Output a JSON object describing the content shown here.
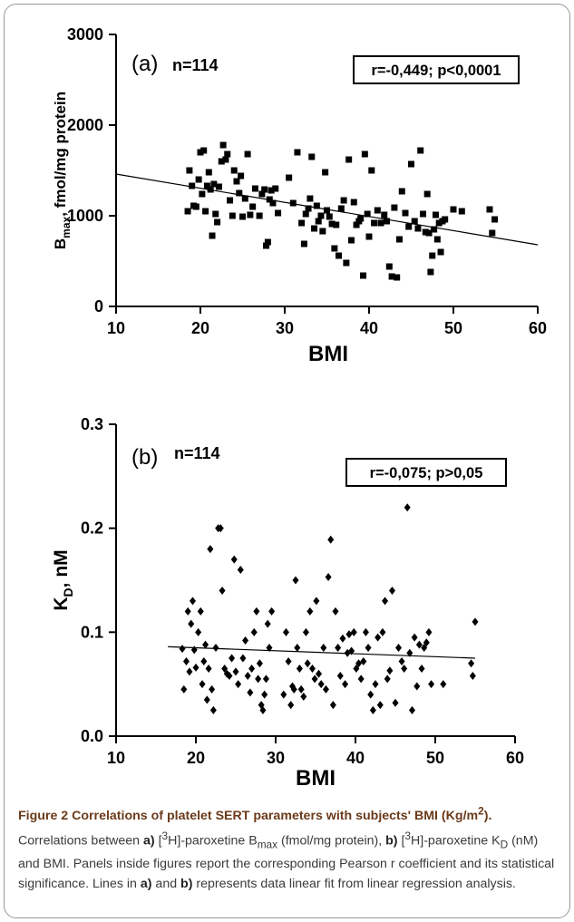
{
  "chart_data": [
    {
      "type": "scatter",
      "panel_label": "(a)",
      "n_label": "n=114",
      "stat_label": "r=-0,449; p<0,0001",
      "xlabel": "BMI",
      "ylabel_main": "B",
      "ylabel_sub": "max",
      "ylabel_rest": ", fmol/mg protein",
      "xlim": [
        10,
        60
      ],
      "ylim": [
        0,
        3000
      ],
      "xticks": [
        "10",
        "20",
        "30",
        "40",
        "50",
        "60"
      ],
      "yticks": [
        "0",
        "1000",
        "2000",
        "3000"
      ],
      "marker": "square",
      "fit_line": {
        "x": [
          10,
          60
        ],
        "y": [
          1460,
          680
        ]
      },
      "points": [
        [
          18.5,
          1050
        ],
        [
          18.7,
          1500
        ],
        [
          19,
          1330
        ],
        [
          19.2,
          1110
        ],
        [
          19.5,
          1100
        ],
        [
          19.8,
          1400
        ],
        [
          20,
          1700
        ],
        [
          20.2,
          1240
        ],
        [
          20.4,
          1720
        ],
        [
          20.6,
          1050
        ],
        [
          20.8,
          1330
        ],
        [
          21,
          1480
        ],
        [
          21.2,
          1290
        ],
        [
          21.4,
          780
        ],
        [
          21.6,
          1350
        ],
        [
          21.8,
          1020
        ],
        [
          22,
          930
        ],
        [
          22.2,
          1320
        ],
        [
          22.5,
          1600
        ],
        [
          22.7,
          1780
        ],
        [
          23,
          1620
        ],
        [
          23.2,
          1680
        ],
        [
          23.5,
          1170
        ],
        [
          23.8,
          1000
        ],
        [
          24,
          1500
        ],
        [
          24.3,
          1380
        ],
        [
          24.6,
          1250
        ],
        [
          24.8,
          1440
        ],
        [
          25,
          990
        ],
        [
          25.3,
          1190
        ],
        [
          25.6,
          1680
        ],
        [
          25.9,
          1010
        ],
        [
          26.2,
          1100
        ],
        [
          26.5,
          1300
        ],
        [
          27,
          1000
        ],
        [
          27.3,
          1240
        ],
        [
          27.6,
          1290
        ],
        [
          27.8,
          670
        ],
        [
          28,
          710
        ],
        [
          28.2,
          1180
        ],
        [
          28.4,
          1280
        ],
        [
          28.6,
          1140
        ],
        [
          28.9,
          1300
        ],
        [
          29.2,
          1030
        ],
        [
          30.5,
          1420
        ],
        [
          31,
          1140
        ],
        [
          31.5,
          1700
        ],
        [
          32,
          920
        ],
        [
          32.3,
          690
        ],
        [
          32.5,
          1020
        ],
        [
          32.8,
          1080
        ],
        [
          33,
          1190
        ],
        [
          33.2,
          1650
        ],
        [
          33.5,
          860
        ],
        [
          33.8,
          1110
        ],
        [
          34,
          940
        ],
        [
          34.3,
          1000
        ],
        [
          34.5,
          830
        ],
        [
          34.8,
          1480
        ],
        [
          35,
          1060
        ],
        [
          35.3,
          990
        ],
        [
          35.6,
          910
        ],
        [
          35.9,
          640
        ],
        [
          36.1,
          900
        ],
        [
          36.4,
          560
        ],
        [
          36.7,
          1080
        ],
        [
          37,
          1170
        ],
        [
          37.3,
          480
        ],
        [
          37.6,
          1620
        ],
        [
          37.9,
          730
        ],
        [
          38.2,
          1150
        ],
        [
          38.5,
          900
        ],
        [
          38.8,
          940
        ],
        [
          39,
          970
        ],
        [
          39.3,
          340
        ],
        [
          39.5,
          1680
        ],
        [
          39.8,
          1020
        ],
        [
          40,
          770
        ],
        [
          40.3,
          1500
        ],
        [
          40.6,
          920
        ],
        [
          41,
          1060
        ],
        [
          41.4,
          920
        ],
        [
          41.8,
          1010
        ],
        [
          42.1,
          940
        ],
        [
          42.4,
          440
        ],
        [
          42.7,
          330
        ],
        [
          43,
          1090
        ],
        [
          43.3,
          320
        ],
        [
          43.6,
          740
        ],
        [
          43.9,
          1270
        ],
        [
          44.3,
          1030
        ],
        [
          44.7,
          880
        ],
        [
          45,
          1570
        ],
        [
          45.4,
          940
        ],
        [
          45.8,
          860
        ],
        [
          46.1,
          1720
        ],
        [
          46.4,
          1020
        ],
        [
          46.7,
          820
        ],
        [
          46.9,
          1240
        ],
        [
          47.1,
          810
        ],
        [
          47.3,
          380
        ],
        [
          47.5,
          560
        ],
        [
          47.7,
          850
        ],
        [
          47.9,
          1010
        ],
        [
          48.1,
          740
        ],
        [
          48.3,
          920
        ],
        [
          48.5,
          600
        ],
        [
          48.7,
          940
        ],
        [
          49,
          960
        ],
        [
          50,
          1070
        ],
        [
          51,
          1050
        ],
        [
          54.3,
          1070
        ],
        [
          54.6,
          810
        ],
        [
          54.9,
          960
        ]
      ]
    },
    {
      "type": "scatter",
      "panel_label": "(b)",
      "n_label": "n=114",
      "stat_label": "r=-0,075; p>0,05",
      "xlabel": "BMI",
      "ylabel_main": "K",
      "ylabel_sub": "D",
      "ylabel_rest": ", nM",
      "xlim": [
        10,
        60
      ],
      "ylim": [
        0,
        0.3
      ],
      "xticks": [
        "10",
        "20",
        "30",
        "40",
        "50",
        "60"
      ],
      "yticks": [
        "0.0",
        "0.1",
        "0.2",
        "0.3"
      ],
      "marker": "diamond",
      "fit_line": {
        "x": [
          16.5,
          55
        ],
        "y": [
          0.086,
          0.075
        ]
      },
      "points": [
        [
          18.3,
          0.084
        ],
        [
          18.5,
          0.045
        ],
        [
          18.8,
          0.072
        ],
        [
          19,
          0.12
        ],
        [
          19.2,
          0.062
        ],
        [
          19.4,
          0.108
        ],
        [
          19.6,
          0.13
        ],
        [
          19.8,
          0.083
        ],
        [
          20,
          0.066
        ],
        [
          20.3,
          0.1
        ],
        [
          20.6,
          0.12
        ],
        [
          20.8,
          0.05
        ],
        [
          21,
          0.072
        ],
        [
          21.2,
          0.088
        ],
        [
          21.4,
          0.035
        ],
        [
          21.6,
          0.065
        ],
        [
          21.8,
          0.18
        ],
        [
          22,
          0.045
        ],
        [
          22.2,
          0.025
        ],
        [
          22.5,
          0.085
        ],
        [
          22.8,
          0.2
        ],
        [
          23.1,
          0.2
        ],
        [
          23.3,
          0.14
        ],
        [
          23.6,
          0.065
        ],
        [
          23.9,
          0.06
        ],
        [
          24.2,
          0.058
        ],
        [
          24.5,
          0.075
        ],
        [
          24.8,
          0.17
        ],
        [
          25,
          0.062
        ],
        [
          25.3,
          0.05
        ],
        [
          25.6,
          0.16
        ],
        [
          25.9,
          0.075
        ],
        [
          26.2,
          0.092
        ],
        [
          26.5,
          0.058
        ],
        [
          26.8,
          0.042
        ],
        [
          27,
          0.065
        ],
        [
          27.3,
          0.1
        ],
        [
          27.6,
          0.12
        ],
        [
          27.8,
          0.055
        ],
        [
          28,
          0.07
        ],
        [
          28.2,
          0.03
        ],
        [
          28.4,
          0.025
        ],
        [
          28.6,
          0.04
        ],
        [
          28.8,
          0.055
        ],
        [
          29,
          0.108
        ],
        [
          29.2,
          0.085
        ],
        [
          29.5,
          0.12
        ],
        [
          31,
          0.04
        ],
        [
          31.3,
          0.1
        ],
        [
          31.6,
          0.072
        ],
        [
          31.9,
          0.03
        ],
        [
          32.1,
          0.048
        ],
        [
          32.3,
          0.045
        ],
        [
          32.5,
          0.15
        ],
        [
          32.7,
          0.085
        ],
        [
          33,
          0.065
        ],
        [
          33.2,
          0.045
        ],
        [
          33.5,
          0.038
        ],
        [
          33.8,
          0.1
        ],
        [
          34,
          0.07
        ],
        [
          34.3,
          0.12
        ],
        [
          34.6,
          0.065
        ],
        [
          34.9,
          0.055
        ],
        [
          35.1,
          0.13
        ],
        [
          35.4,
          0.06
        ],
        [
          35.7,
          0.05
        ],
        [
          36,
          0.085
        ],
        [
          36.3,
          0.045
        ],
        [
          36.6,
          0.153
        ],
        [
          36.9,
          0.189
        ],
        [
          37.2,
          0.03
        ],
        [
          37.5,
          0.12
        ],
        [
          37.8,
          0.085
        ],
        [
          38.1,
          0.058
        ],
        [
          38.4,
          0.094
        ],
        [
          38.7,
          0.05
        ],
        [
          39,
          0.08
        ],
        [
          39.2,
          0.098
        ],
        [
          39.5,
          0.082
        ],
        [
          39.8,
          0.1
        ],
        [
          40.1,
          0.065
        ],
        [
          40.4,
          0.07
        ],
        [
          40.7,
          0.055
        ],
        [
          41,
          0.072
        ],
        [
          41.3,
          0.1
        ],
        [
          41.6,
          0.085
        ],
        [
          41.9,
          0.04
        ],
        [
          42.2,
          0.025
        ],
        [
          42.5,
          0.05
        ],
        [
          42.8,
          0.095
        ],
        [
          43.1,
          0.03
        ],
        [
          43.4,
          0.1
        ],
        [
          43.7,
          0.13
        ],
        [
          44,
          0.055
        ],
        [
          44.3,
          0.063
        ],
        [
          44.6,
          0.14
        ],
        [
          45,
          0.032
        ],
        [
          45.4,
          0.085
        ],
        [
          45.8,
          0.072
        ],
        [
          46.1,
          0.065
        ],
        [
          46.5,
          0.22
        ],
        [
          46.8,
          0.08
        ],
        [
          47.1,
          0.025
        ],
        [
          47.4,
          0.095
        ],
        [
          47.7,
          0.048
        ],
        [
          48,
          0.088
        ],
        [
          48.3,
          0.065
        ],
        [
          48.6,
          0.085
        ],
        [
          48.9,
          0.09
        ],
        [
          49.2,
          0.1
        ],
        [
          49.5,
          0.05
        ],
        [
          51,
          0.05
        ],
        [
          54.5,
          0.07
        ],
        [
          54.7,
          0.058
        ],
        [
          55,
          0.11
        ]
      ]
    }
  ],
  "caption": {
    "title": "Figure 2 Correlations of platelet SERT parameters with subjects' BMI (Kg/m",
    "title_sup": "2",
    "title_end": ").",
    "p1": " Correlations between ",
    "a_label": "a)",
    "sup3_1": "3",
    "p2": "H]-paroxetine B",
    "sub_max": "max",
    "p3": " (fmol/mg protein), ",
    "b_label": "b)",
    "sup3_2": "3",
    "p4": "H]-paroxetine K",
    "sub_d": "D",
    "p5": " (nM) and BMI. Panels inside figures report the corresponding Pearson r coefficient and its statistical significance. Lines in ",
    "a_label2": "a)",
    "and_text": " and ",
    "b_label2": "b)",
    "p6": " represents data linear fit from linear regression analysis."
  }
}
